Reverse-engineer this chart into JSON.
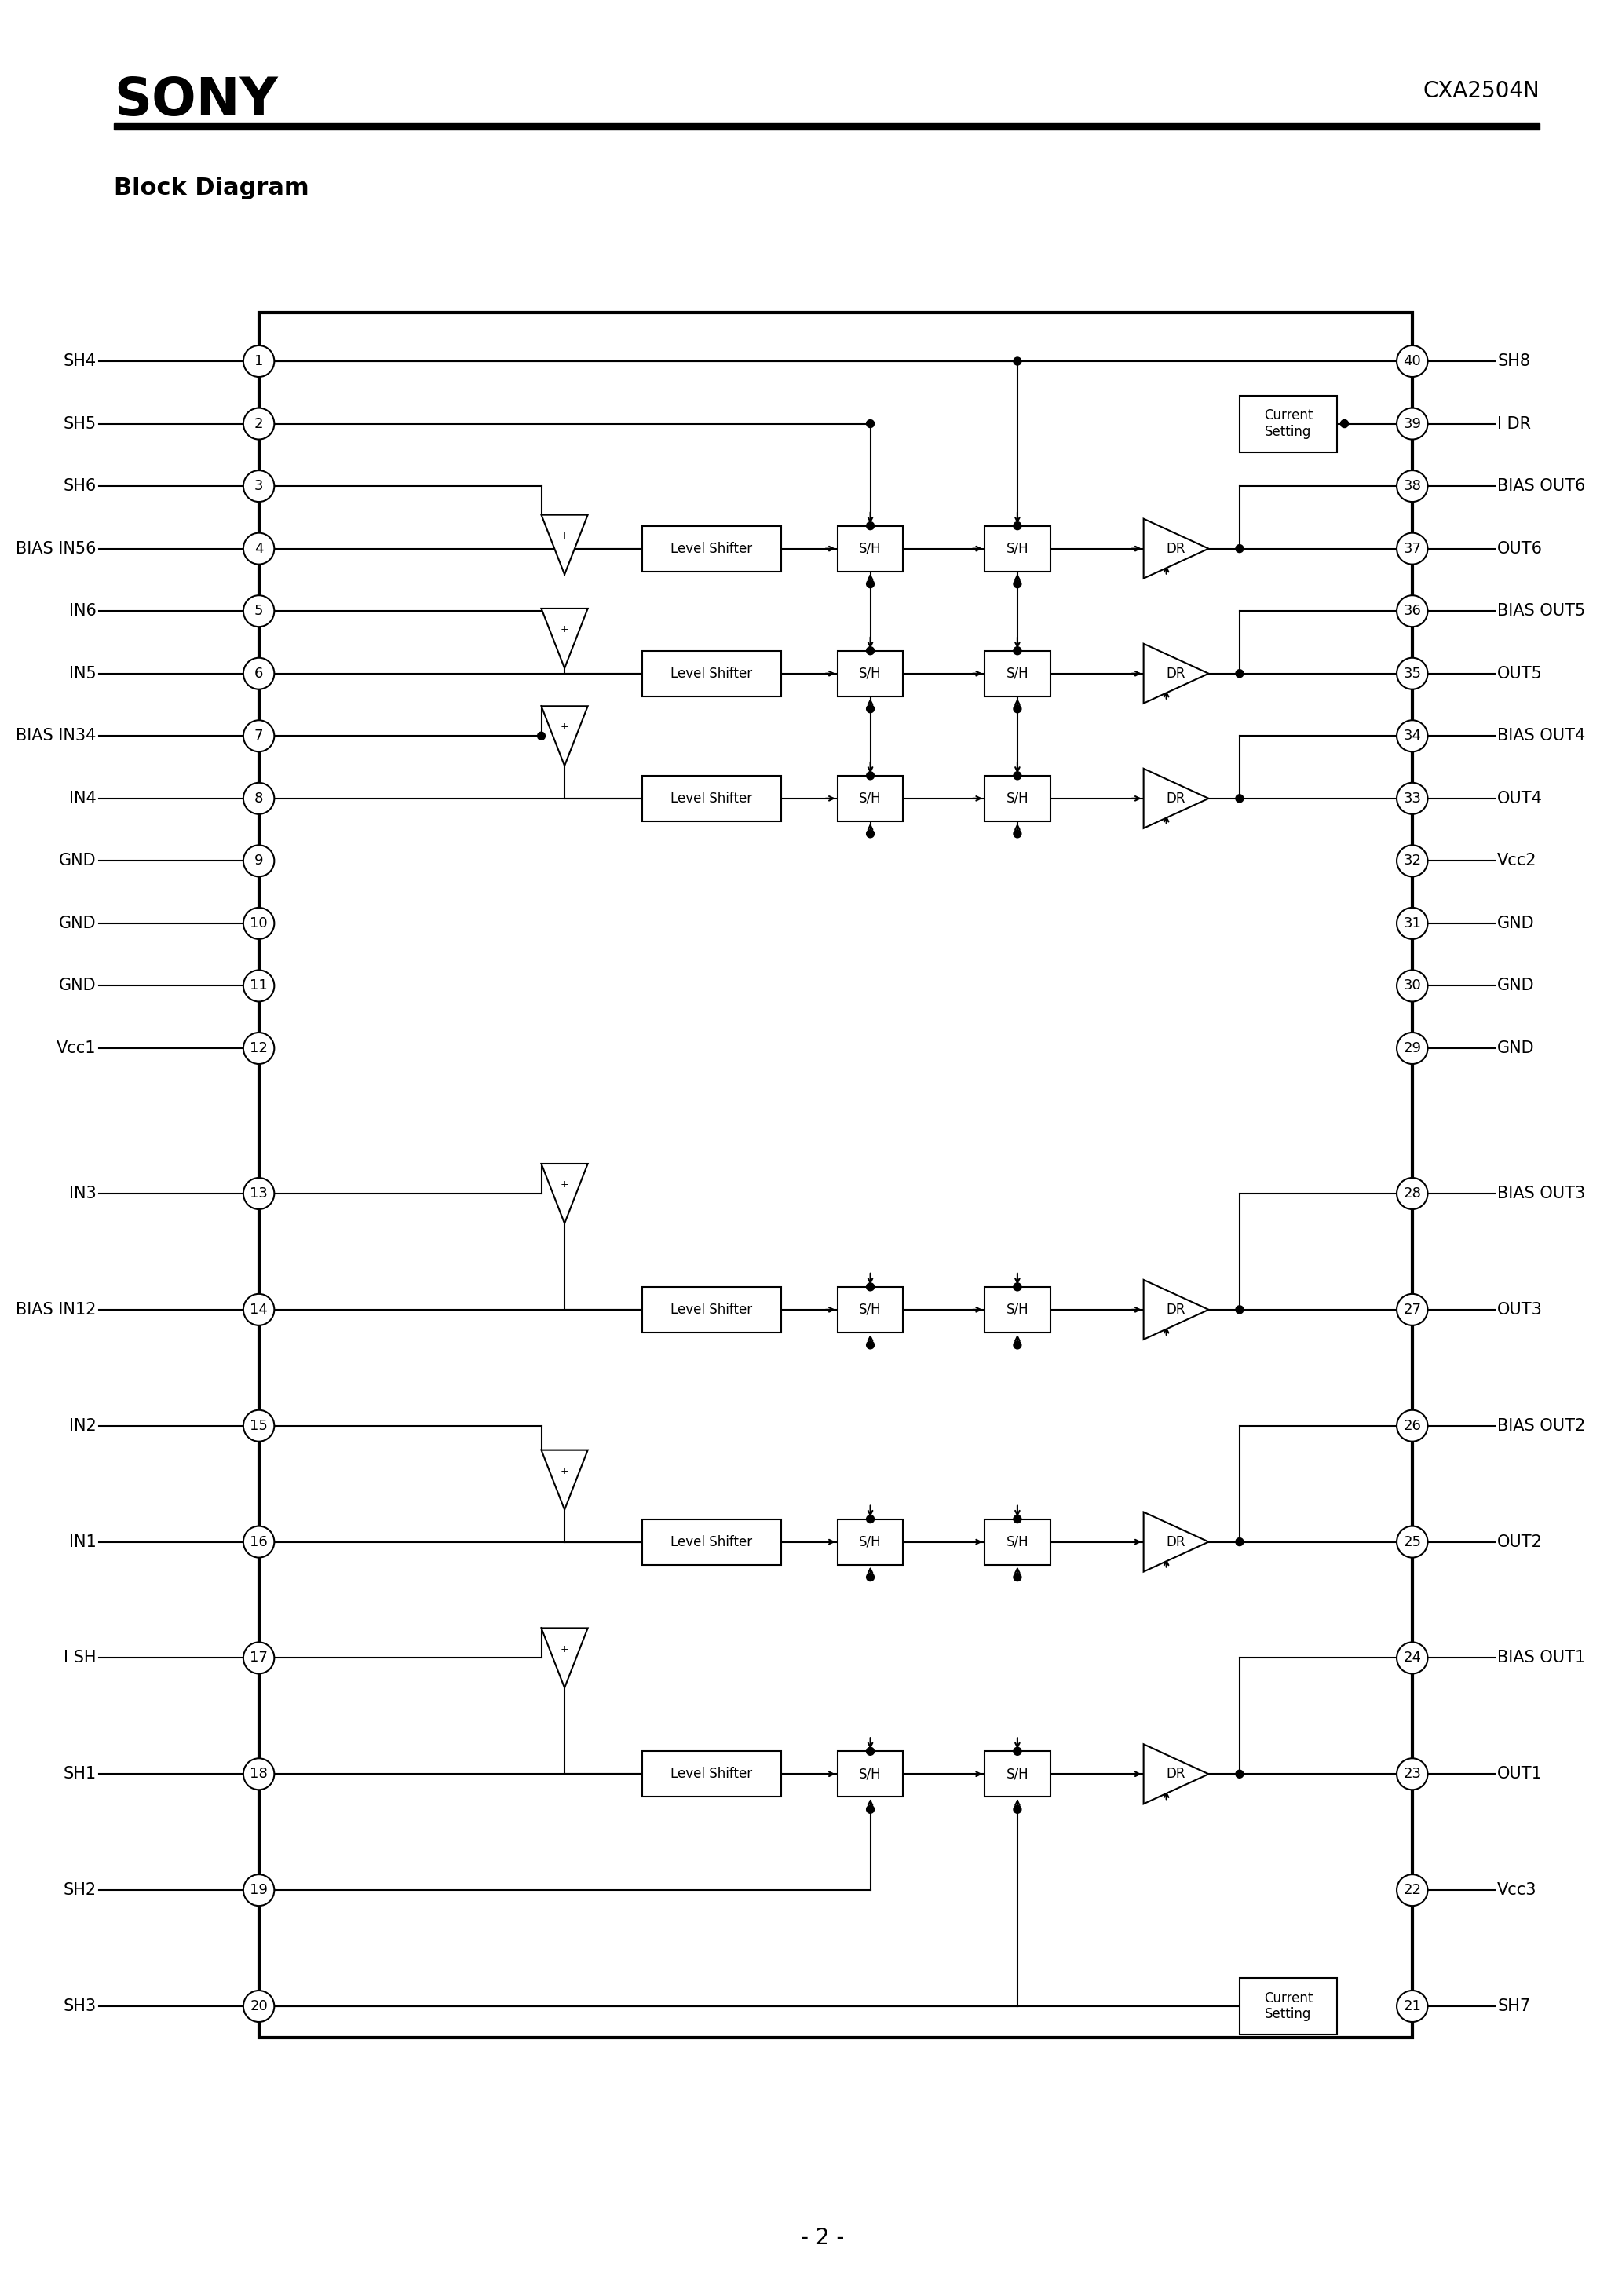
{
  "title": "SONY",
  "part_number": "CXA2504N",
  "section_title": "Block Diagram",
  "page_number": "- 2 -",
  "left_pins": [
    {
      "num": 1,
      "label": "SH4"
    },
    {
      "num": 2,
      "label": "SH5"
    },
    {
      "num": 3,
      "label": "SH6"
    },
    {
      "num": 4,
      "label": "BIAS IN56"
    },
    {
      "num": 5,
      "label": "IN6"
    },
    {
      "num": 6,
      "label": "IN5"
    },
    {
      "num": 7,
      "label": "BIAS IN34"
    },
    {
      "num": 8,
      "label": "IN4"
    },
    {
      "num": 9,
      "label": "GND"
    },
    {
      "num": 10,
      "label": "GND"
    },
    {
      "num": 11,
      "label": "GND"
    },
    {
      "num": 12,
      "label": "Vcc1"
    },
    {
      "num": 13,
      "label": "IN3"
    },
    {
      "num": 14,
      "label": "BIAS IN12"
    },
    {
      "num": 15,
      "label": "IN2"
    },
    {
      "num": 16,
      "label": "IN1"
    },
    {
      "num": 17,
      "label": "I SH"
    },
    {
      "num": 18,
      "label": "SH1"
    },
    {
      "num": 19,
      "label": "SH2"
    },
    {
      "num": 20,
      "label": "SH3"
    }
  ],
  "right_pins": [
    {
      "num": 40,
      "label": "SH8"
    },
    {
      "num": 39,
      "label": "I DR"
    },
    {
      "num": 38,
      "label": "BIAS OUT6"
    },
    {
      "num": 37,
      "label": "OUT6"
    },
    {
      "num": 36,
      "label": "BIAS OUT5"
    },
    {
      "num": 35,
      "label": "OUT5"
    },
    {
      "num": 34,
      "label": "BIAS OUT4"
    },
    {
      "num": 33,
      "label": "OUT4"
    },
    {
      "num": 32,
      "label": "Vcc2"
    },
    {
      "num": 31,
      "label": "GND"
    },
    {
      "num": 30,
      "label": "GND"
    },
    {
      "num": 29,
      "label": "GND"
    },
    {
      "num": 28,
      "label": "BIAS OUT3"
    },
    {
      "num": 27,
      "label": "OUT3"
    },
    {
      "num": 26,
      "label": "BIAS OUT2"
    },
    {
      "num": 25,
      "label": "OUT2"
    },
    {
      "num": 24,
      "label": "BIAS OUT1"
    },
    {
      "num": 23,
      "label": "OUT1"
    },
    {
      "num": 22,
      "label": "Vcc3"
    },
    {
      "num": 21,
      "label": "SH7"
    }
  ],
  "bg_color": "#ffffff",
  "line_color": "#000000",
  "lw": 1.5,
  "lw_thick": 3.0,
  "pin_r": 20,
  "font_label": 15,
  "font_pin": 13,
  "font_header": 48,
  "font_pn": 20,
  "font_section": 22,
  "font_block": 12,
  "font_page": 20
}
